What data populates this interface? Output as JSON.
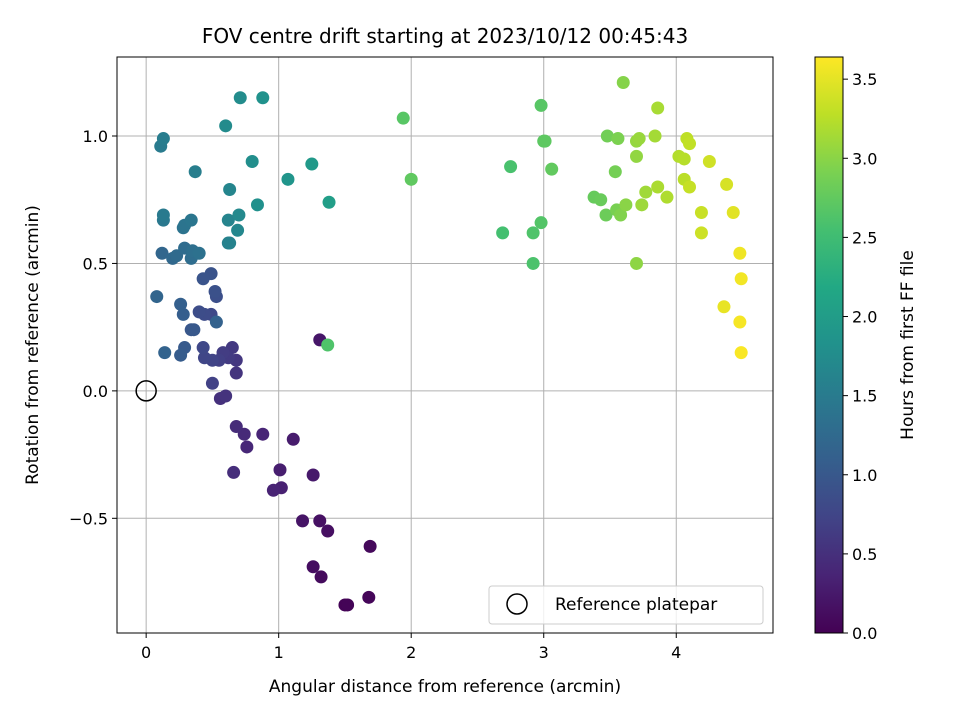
{
  "chart_data": {
    "type": "scatter",
    "title": "FOV centre drift starting at 2023/10/12 00:45:43",
    "xlabel": "Angular distance from reference (arcmin)",
    "ylabel": "Rotation from reference (arcmin)",
    "xlim": [
      -0.22,
      4.73
    ],
    "ylim": [
      -0.95,
      1.31
    ],
    "xticks": [
      0,
      1,
      2,
      3,
      4
    ],
    "yticks": [
      -0.5,
      0.0,
      0.5,
      1.0
    ],
    "xtick_labels": [
      "0",
      "1",
      "2",
      "3",
      "4"
    ],
    "ytick_labels": [
      "−0.5",
      "0.0",
      "0.5",
      "1.0"
    ],
    "grid": true,
    "legend": {
      "location": "lower right",
      "entries": [
        "Reference platepar"
      ]
    },
    "colorbar": {
      "label": "Hours from first FF file",
      "range": [
        0.0,
        3.64
      ],
      "ticks": [
        0.0,
        0.5,
        1.0,
        1.5,
        2.0,
        2.5,
        3.0,
        3.5
      ],
      "tick_labels": [
        "0.0",
        "0.5",
        "1.0",
        "1.5",
        "2.0",
        "2.5",
        "3.0",
        "3.5"
      ],
      "colormap": "viridis"
    },
    "reference_point": {
      "x": 0.0,
      "y": 0.0,
      "label": "Reference platepar"
    },
    "points": [
      {
        "x": 1.5,
        "y": -0.84,
        "c": 0.02
      },
      {
        "x": 1.52,
        "y": -0.84,
        "c": 0.03
      },
      {
        "x": 1.68,
        "y": -0.81,
        "c": 0.05
      },
      {
        "x": 1.69,
        "y": -0.61,
        "c": 0.08
      },
      {
        "x": 1.32,
        "y": -0.73,
        "c": 0.1
      },
      {
        "x": 1.26,
        "y": -0.69,
        "c": 0.13
      },
      {
        "x": 1.37,
        "y": -0.55,
        "c": 0.15
      },
      {
        "x": 1.31,
        "y": -0.51,
        "c": 0.17
      },
      {
        "x": 1.18,
        "y": -0.51,
        "c": 0.2
      },
      {
        "x": 1.31,
        "y": 0.2,
        "c": 0.22
      },
      {
        "x": 1.26,
        "y": -0.33,
        "c": 0.25
      },
      {
        "x": 1.11,
        "y": -0.19,
        "c": 0.28
      },
      {
        "x": 1.01,
        "y": -0.31,
        "c": 0.3
      },
      {
        "x": 1.02,
        "y": -0.38,
        "c": 0.33
      },
      {
        "x": 0.96,
        "y": -0.39,
        "c": 0.35
      },
      {
        "x": 0.88,
        "y": -0.17,
        "c": 0.38
      },
      {
        "x": 0.76,
        "y": -0.22,
        "c": 0.4
      },
      {
        "x": 0.74,
        "y": -0.17,
        "c": 0.43
      },
      {
        "x": 0.68,
        "y": -0.14,
        "c": 0.45
      },
      {
        "x": 0.66,
        "y": -0.32,
        "c": 0.48
      },
      {
        "x": 0.56,
        "y": -0.03,
        "c": 0.5
      },
      {
        "x": 0.6,
        "y": -0.02,
        "c": 0.53
      },
      {
        "x": 0.68,
        "y": 0.07,
        "c": 0.55
      },
      {
        "x": 0.68,
        "y": 0.12,
        "c": 0.58
      },
      {
        "x": 0.65,
        "y": 0.17,
        "c": 0.6
      },
      {
        "x": 0.62,
        "y": 0.13,
        "c": 0.63
      },
      {
        "x": 0.58,
        "y": 0.15,
        "c": 0.65
      },
      {
        "x": 0.55,
        "y": 0.12,
        "c": 0.68
      },
      {
        "x": 0.5,
        "y": 0.03,
        "c": 0.7
      },
      {
        "x": 0.5,
        "y": 0.12,
        "c": 0.73
      },
      {
        "x": 0.44,
        "y": 0.13,
        "c": 0.75
      },
      {
        "x": 0.43,
        "y": 0.17,
        "c": 0.78
      },
      {
        "x": 0.49,
        "y": 0.3,
        "c": 0.8
      },
      {
        "x": 0.44,
        "y": 0.3,
        "c": 0.83
      },
      {
        "x": 0.4,
        "y": 0.31,
        "c": 0.85
      },
      {
        "x": 0.53,
        "y": 0.37,
        "c": 0.88
      },
      {
        "x": 0.52,
        "y": 0.39,
        "c": 0.9
      },
      {
        "x": 0.49,
        "y": 0.46,
        "c": 0.93
      },
      {
        "x": 0.43,
        "y": 0.44,
        "c": 0.95
      },
      {
        "x": 0.34,
        "y": 0.24,
        "c": 0.98
      },
      {
        "x": 0.36,
        "y": 0.24,
        "c": 1.0
      },
      {
        "x": 0.29,
        "y": 0.17,
        "c": 1.03
      },
      {
        "x": 0.26,
        "y": 0.14,
        "c": 1.05
      },
      {
        "x": 0.28,
        "y": 0.3,
        "c": 1.08
      },
      {
        "x": 0.26,
        "y": 0.34,
        "c": 1.1
      },
      {
        "x": 0.53,
        "y": 0.27,
        "c": 1.13
      },
      {
        "x": 0.14,
        "y": 0.15,
        "c": 1.15
      },
      {
        "x": 0.08,
        "y": 0.37,
        "c": 1.18
      },
      {
        "x": 0.12,
        "y": 0.54,
        "c": 1.2
      },
      {
        "x": 0.2,
        "y": 0.52,
        "c": 1.23
      },
      {
        "x": 0.23,
        "y": 0.53,
        "c": 1.25
      },
      {
        "x": 0.29,
        "y": 0.56,
        "c": 1.28
      },
      {
        "x": 0.34,
        "y": 0.52,
        "c": 1.3
      },
      {
        "x": 0.35,
        "y": 0.55,
        "c": 1.33
      },
      {
        "x": 0.4,
        "y": 0.54,
        "c": 1.35
      },
      {
        "x": 0.28,
        "y": 0.64,
        "c": 1.38
      },
      {
        "x": 0.29,
        "y": 0.65,
        "c": 1.4
      },
      {
        "x": 0.34,
        "y": 0.67,
        "c": 1.43
      },
      {
        "x": 0.13,
        "y": 0.67,
        "c": 1.45
      },
      {
        "x": 0.13,
        "y": 0.69,
        "c": 1.48
      },
      {
        "x": 0.11,
        "y": 0.96,
        "c": 1.5
      },
      {
        "x": 0.13,
        "y": 0.99,
        "c": 1.53
      },
      {
        "x": 0.37,
        "y": 0.86,
        "c": 1.55
      },
      {
        "x": 0.62,
        "y": 0.58,
        "c": 1.58
      },
      {
        "x": 0.63,
        "y": 0.58,
        "c": 1.6
      },
      {
        "x": 0.62,
        "y": 0.67,
        "c": 1.63
      },
      {
        "x": 0.63,
        "y": 0.79,
        "c": 1.65
      },
      {
        "x": 0.69,
        "y": 0.63,
        "c": 1.68
      },
      {
        "x": 0.7,
        "y": 0.69,
        "c": 1.7
      },
      {
        "x": 0.6,
        "y": 1.04,
        "c": 1.73
      },
      {
        "x": 0.71,
        "y": 1.15,
        "c": 1.75
      },
      {
        "x": 0.8,
        "y": 0.9,
        "c": 1.78
      },
      {
        "x": 0.84,
        "y": 0.73,
        "c": 1.8
      },
      {
        "x": 0.88,
        "y": 1.15,
        "c": 1.83
      },
      {
        "x": 1.07,
        "y": 0.83,
        "c": 1.88
      },
      {
        "x": 1.25,
        "y": 0.89,
        "c": 1.95
      },
      {
        "x": 1.38,
        "y": 0.74,
        "c": 2.02
      },
      {
        "x": 1.37,
        "y": 0.18,
        "c": 2.62
      },
      {
        "x": 1.94,
        "y": 1.07,
        "c": 2.68
      },
      {
        "x": 2.0,
        "y": 0.83,
        "c": 2.74
      },
      {
        "x": 2.69,
        "y": 0.62,
        "c": 2.55
      },
      {
        "x": 2.75,
        "y": 0.88,
        "c": 2.58
      },
      {
        "x": 2.92,
        "y": 0.5,
        "c": 2.6
      },
      {
        "x": 2.92,
        "y": 0.62,
        "c": 2.62
      },
      {
        "x": 2.98,
        "y": 0.66,
        "c": 2.65
      },
      {
        "x": 2.98,
        "y": 1.12,
        "c": 2.68
      },
      {
        "x": 3.0,
        "y": 0.98,
        "c": 2.7
      },
      {
        "x": 3.01,
        "y": 0.98,
        "c": 2.72
      },
      {
        "x": 3.06,
        "y": 0.87,
        "c": 2.75
      },
      {
        "x": 3.38,
        "y": 0.76,
        "c": 2.78
      },
      {
        "x": 3.43,
        "y": 0.75,
        "c": 2.8
      },
      {
        "x": 3.47,
        "y": 0.69,
        "c": 2.82
      },
      {
        "x": 3.48,
        "y": 1.0,
        "c": 2.85
      },
      {
        "x": 3.54,
        "y": 0.86,
        "c": 2.87
      },
      {
        "x": 3.55,
        "y": 0.71,
        "c": 2.9
      },
      {
        "x": 3.56,
        "y": 0.99,
        "c": 2.92
      },
      {
        "x": 3.58,
        "y": 0.69,
        "c": 2.95
      },
      {
        "x": 3.6,
        "y": 1.21,
        "c": 2.97
      },
      {
        "x": 3.62,
        "y": 0.73,
        "c": 3.0
      },
      {
        "x": 3.7,
        "y": 0.5,
        "c": 3.02
      },
      {
        "x": 3.7,
        "y": 0.92,
        "c": 3.04
      },
      {
        "x": 3.7,
        "y": 0.98,
        "c": 3.06
      },
      {
        "x": 3.72,
        "y": 0.99,
        "c": 3.08
      },
      {
        "x": 3.74,
        "y": 0.73,
        "c": 3.1
      },
      {
        "x": 3.77,
        "y": 0.78,
        "c": 3.12
      },
      {
        "x": 3.84,
        "y": 1.0,
        "c": 3.14
      },
      {
        "x": 3.86,
        "y": 1.11,
        "c": 3.16
      },
      {
        "x": 3.86,
        "y": 0.8,
        "c": 3.18
      },
      {
        "x": 3.93,
        "y": 0.76,
        "c": 3.2
      },
      {
        "x": 4.02,
        "y": 0.92,
        "c": 3.22
      },
      {
        "x": 4.06,
        "y": 0.91,
        "c": 3.24
      },
      {
        "x": 4.06,
        "y": 0.83,
        "c": 3.26
      },
      {
        "x": 4.08,
        "y": 0.99,
        "c": 3.28
      },
      {
        "x": 4.1,
        "y": 0.97,
        "c": 3.3
      },
      {
        "x": 4.1,
        "y": 0.8,
        "c": 3.32
      },
      {
        "x": 4.19,
        "y": 0.7,
        "c": 3.34
      },
      {
        "x": 4.19,
        "y": 0.62,
        "c": 3.36
      },
      {
        "x": 4.25,
        "y": 0.9,
        "c": 3.38
      },
      {
        "x": 4.38,
        "y": 0.81,
        "c": 3.42
      },
      {
        "x": 4.43,
        "y": 0.7,
        "c": 3.48
      },
      {
        "x": 4.36,
        "y": 0.33,
        "c": 3.52
      },
      {
        "x": 4.48,
        "y": 0.54,
        "c": 3.56
      },
      {
        "x": 4.49,
        "y": 0.44,
        "c": 3.58
      },
      {
        "x": 4.48,
        "y": 0.27,
        "c": 3.6
      },
      {
        "x": 4.49,
        "y": 0.15,
        "c": 3.62
      }
    ]
  }
}
